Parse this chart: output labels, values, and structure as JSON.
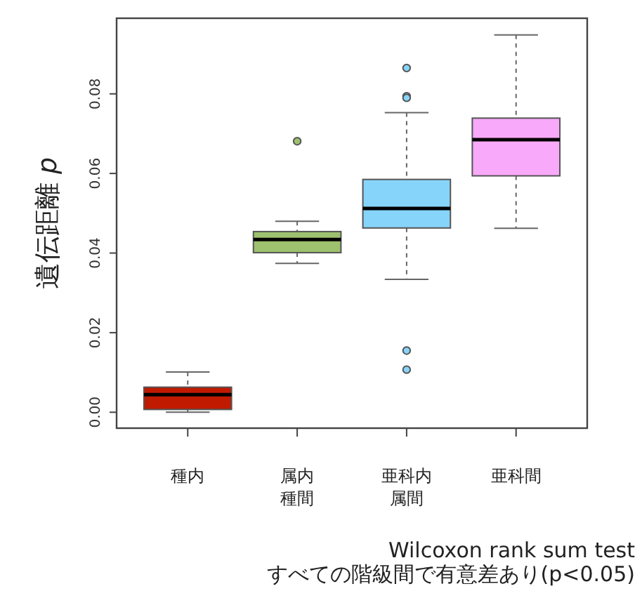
{
  "chart_data": {
    "type": "box",
    "ylabel": "遺伝距離 p",
    "categories": [
      "種内",
      "属内種間",
      "亜科内属間",
      "亜科間"
    ],
    "colors": [
      "#c01a00",
      "#9dc16e",
      "#87d4fa",
      "#f9a9f9"
    ],
    "boxes": [
      {
        "low": 0.0,
        "q1": 0.0007,
        "median": 0.0044,
        "q3": 0.0063,
        "high": 0.0101
      },
      {
        "low": 0.0374,
        "q1": 0.0401,
        "median": 0.0434,
        "q3": 0.0454,
        "high": 0.048,
        "outliers": [
          0.0681
        ]
      },
      {
        "low": 0.0334,
        "q1": 0.0463,
        "median": 0.0512,
        "q3": 0.0585,
        "high": 0.0753,
        "outliers": [
          0.0865,
          0.0794,
          0.079,
          0.0155,
          0.0107
        ]
      },
      {
        "low": 0.0462,
        "q1": 0.0594,
        "median": 0.0685,
        "q3": 0.0739,
        "high": 0.0948
      }
    ],
    "ylim": [
      -0.004,
      0.099
    ],
    "yticks": [
      {
        "value": 0,
        "label": "0.00"
      },
      {
        "value": 0.02,
        "label": "0.02"
      },
      {
        "value": 0.04,
        "label": "0.04"
      },
      {
        "value": 0.06,
        "label": "0.06"
      },
      {
        "value": 0.08,
        "label": "0.08"
      }
    ],
    "annotations": [
      "Wilcoxon rank sum test",
      "すべての階級間で有意差あり(p<0.05)"
    ]
  }
}
